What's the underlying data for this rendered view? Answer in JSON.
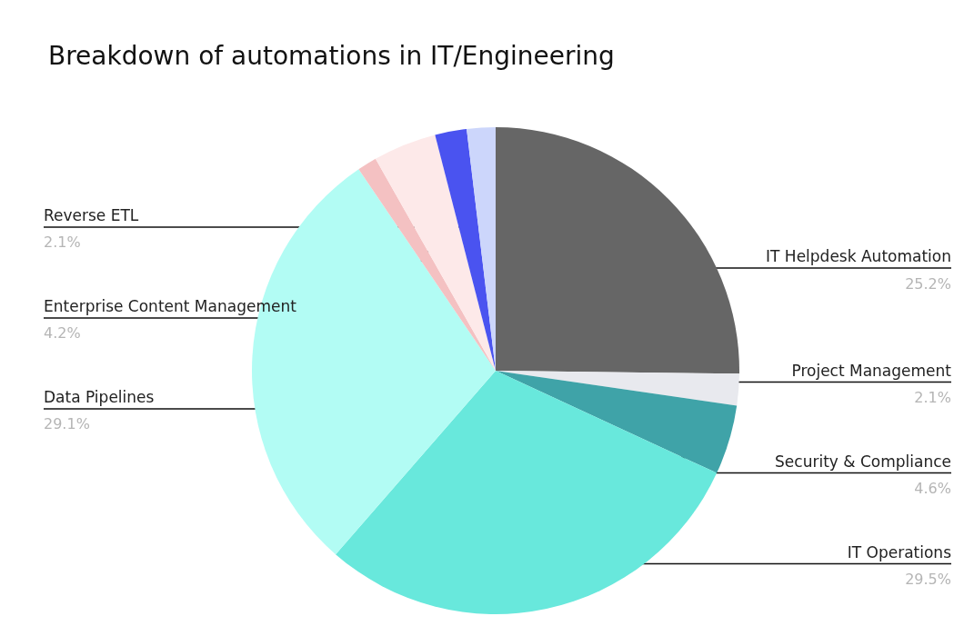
{
  "chart_data": {
    "type": "pie",
    "title": "Breakdown of automations in IT/Engineering",
    "categories": [
      "IT Helpdesk Automation",
      "Project Management",
      "Security & Compliance",
      "IT Operations",
      "Data Pipelines",
      null,
      "Enterprise Content Management",
      "Reverse ETL",
      null
    ],
    "values": [
      25.2,
      2.1,
      4.6,
      29.5,
      29.1,
      1.3,
      4.2,
      2.1,
      1.9
    ],
    "value_labels": [
      "25.2%",
      "2.1%",
      "4.6%",
      "29.5%",
      "29.1%",
      null,
      "4.2%",
      "2.1%",
      null
    ],
    "colors": [
      "#666666",
      "#e8e9ee",
      "#3fa3a8",
      "#68e8dc",
      "#b2fcf4",
      "#f4c1c2",
      "#fde9e9",
      "#4a53f0",
      "#ccd6fb"
    ],
    "legend": false
  }
}
